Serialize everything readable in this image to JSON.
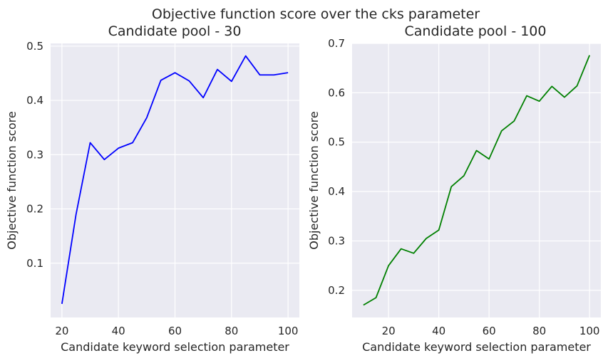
{
  "figure": {
    "suptitle": "Objective function score over the cks parameter"
  },
  "chart_data": [
    {
      "type": "line",
      "title": "Candidate pool - 30",
      "xlabel": "Candidate keyword selection parameter",
      "ylabel": "Objective function score",
      "xlim": [
        16,
        104
      ],
      "ylim": [
        0.0,
        0.505
      ],
      "xticks": [
        20,
        40,
        60,
        80,
        100
      ],
      "xtick_labels": [
        "20",
        "40",
        "60",
        "80",
        "100"
      ],
      "yticks": [
        0.1,
        0.2,
        0.3,
        0.4,
        0.5
      ],
      "ytick_labels": [
        "0.1",
        "0.2",
        "0.3",
        "0.4",
        "0.5"
      ],
      "grid": true,
      "background": "#eaeaf2",
      "series": [
        {
          "color": "#0000ff",
          "x": [
            20,
            25,
            30,
            35,
            40,
            45,
            50,
            55,
            60,
            65,
            70,
            75,
            80,
            85,
            90,
            95,
            100
          ],
          "y": [
            0.025,
            0.19,
            0.322,
            0.291,
            0.312,
            0.322,
            0.368,
            0.437,
            0.451,
            0.436,
            0.405,
            0.457,
            0.435,
            0.482,
            0.447,
            0.447,
            0.451
          ]
        }
      ]
    },
    {
      "type": "line",
      "title": "Candidate pool - 100",
      "xlabel": "Candidate keyword selection parameter",
      "ylabel": "Objective function score",
      "xlim": [
        5.5,
        104.5
      ],
      "ylim": [
        0.145,
        0.7
      ],
      "xticks": [
        20,
        40,
        60,
        80,
        100
      ],
      "xtick_labels": [
        "20",
        "40",
        "60",
        "80",
        "100"
      ],
      "yticks": [
        0.2,
        0.3,
        0.4,
        0.5,
        0.6,
        0.7
      ],
      "ytick_labels": [
        "0.2",
        "0.3",
        "0.4",
        "0.5",
        "0.6",
        "0.7"
      ],
      "grid": true,
      "background": "#eaeaf2",
      "series": [
        {
          "color": "#008000",
          "x": [
            10,
            15,
            20,
            25,
            30,
            35,
            40,
            45,
            50,
            55,
            60,
            65,
            70,
            75,
            80,
            85,
            90,
            95,
            100
          ],
          "y": [
            0.17,
            0.185,
            0.25,
            0.284,
            0.275,
            0.305,
            0.322,
            0.41,
            0.432,
            0.483,
            0.466,
            0.523,
            0.543,
            0.594,
            0.583,
            0.613,
            0.591,
            0.614,
            0.676
          ]
        }
      ]
    }
  ]
}
